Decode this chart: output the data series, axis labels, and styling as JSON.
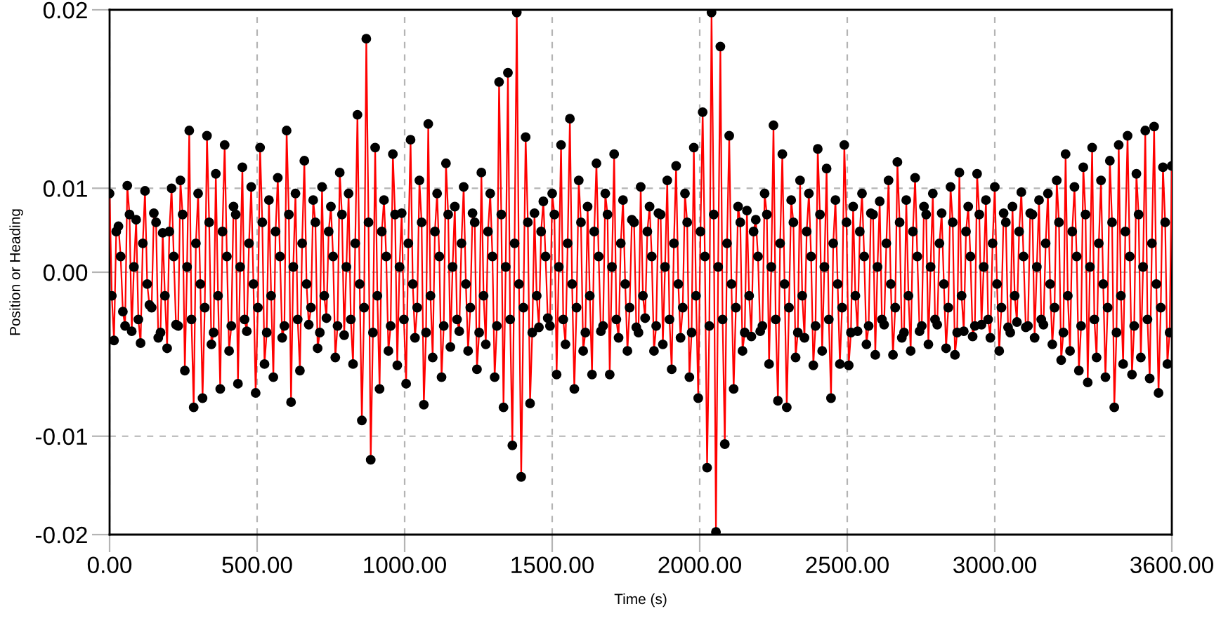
{
  "chart_data": {
    "type": "line",
    "xlabel": "Time (s)",
    "ylabel": "Position or Heading",
    "x": [
      0,
      7.5,
      15,
      22.5,
      30,
      37.5,
      45,
      52.5,
      60,
      67.5,
      75,
      82.5,
      90,
      97.5,
      105,
      112.5,
      120,
      127.5,
      135,
      142.5,
      150,
      157.5,
      165,
      172.5,
      180,
      187.5,
      195,
      202.5,
      210,
      217.5,
      225,
      232.5,
      240,
      247.5,
      255,
      262.5,
      270,
      277.5,
      285,
      292.5,
      300,
      307.5,
      315,
      322.5,
      330,
      337.5,
      345,
      352.5,
      360,
      367.5,
      375,
      382.5,
      390,
      397.5,
      405,
      412.5,
      420,
      427.5,
      435,
      442.5,
      450,
      457.5,
      465,
      472.5,
      480,
      487.5,
      495,
      502.5,
      510,
      517.5,
      525,
      532.5,
      540,
      547.5,
      555,
      562.5,
      570,
      577.5,
      585,
      592.5,
      600,
      607.5,
      615,
      622.5,
      630,
      637.5,
      645,
      652.5,
      660,
      667.5,
      675,
      682.5,
      690,
      697.5,
      705,
      712.5,
      720,
      727.5,
      735,
      742.5,
      750,
      757.5,
      765,
      772.5,
      780,
      787.5,
      795,
      802.5,
      810,
      817.5,
      825,
      832.5,
      840,
      847.5,
      855,
      862.5,
      870,
      877.5,
      885,
      892.5,
      900,
      907.5,
      915,
      922.5,
      930,
      937.5,
      945,
      952.5,
      960,
      967.5,
      975,
      982.5,
      990,
      997.5,
      1005,
      1012.5,
      1020,
      1027.5,
      1035,
      1042.5,
      1050,
      1057.5,
      1065,
      1072.5,
      1080,
      1087.5,
      1095,
      1102.5,
      1110,
      1117.5,
      1125,
      1132.5,
      1140,
      1147.5,
      1155,
      1162.5,
      1170,
      1177.5,
      1185,
      1192.5,
      1200,
      1207.5,
      1215,
      1222.5,
      1230,
      1237.5,
      1245,
      1252.5,
      1260,
      1267.5,
      1275,
      1282.5,
      1290,
      1297.5,
      1305,
      1312.5,
      1320,
      1327.5,
      1335,
      1342.5,
      1350,
      1357.5,
      1365,
      1372.5,
      1380,
      1387.5,
      1395,
      1402.5,
      1410,
      1417.5,
      1425,
      1432.5,
      1440,
      1447.5,
      1455,
      1462.5,
      1470,
      1477.5,
      1485,
      1492.5,
      1500,
      1507.5,
      1515,
      1522.5,
      1530,
      1537.5,
      1545,
      1552.5,
      1560,
      1567.5,
      1575,
      1582.5,
      1590,
      1597.5,
      1605,
      1612.5,
      1620,
      1627.5,
      1635,
      1642.5,
      1650,
      1657.5,
      1665,
      1672.5,
      1680,
      1687.5,
      1695,
      1702.5,
      1710,
      1717.5,
      1725,
      1732.5,
      1740,
      1747.5,
      1755,
      1762.5,
      1770,
      1777.5,
      1785,
      1792.5,
      1800,
      1807.5,
      1815,
      1822.5,
      1830,
      1837.5,
      1845,
      1852.5,
      1860,
      1867.5,
      1875,
      1882.5,
      1890,
      1897.5,
      1905,
      1912.5,
      1920,
      1927.5,
      1935,
      1942.5,
      1950,
      1957.5,
      1965,
      1972.5,
      1980,
      1987.5,
      1995,
      2002.5,
      2010,
      2017.5,
      2025,
      2032.5,
      2040,
      2047.5,
      2055,
      2062.5,
      2070,
      2077.5,
      2085,
      2092.5,
      2100,
      2107.5,
      2115,
      2122.5,
      2130,
      2137.5,
      2145,
      2152.5,
      2160,
      2167.5,
      2175,
      2182.5,
      2190,
      2197.5,
      2205,
      2212.5,
      2220,
      2227.5,
      2235,
      2242.5,
      2250,
      2257.5,
      2265,
      2272.5,
      2280,
      2287.5,
      2295,
      2302.5,
      2310,
      2317.5,
      2325,
      2332.5,
      2340,
      2347.5,
      2355,
      2362.5,
      2370,
      2377.5,
      2385,
      2392.5,
      2400,
      2407.5,
      2415,
      2422.5,
      2430,
      2437.5,
      2445,
      2452.5,
      2460,
      2467.5,
      2475,
      2482.5,
      2490,
      2497.5,
      2505,
      2512.5,
      2520,
      2527.5,
      2535,
      2542.5,
      2550,
      2557.5,
      2565,
      2572.5,
      2580,
      2587.5,
      2595,
      2602.5,
      2610,
      2617.5,
      2625,
      2632.5,
      2640,
      2647.5,
      2655,
      2662.5,
      2670,
      2677.5,
      2685,
      2692.5,
      2700,
      2707.5,
      2715,
      2722.5,
      2730,
      2737.5,
      2745,
      2752.5,
      2760,
      2767.5,
      2775,
      2782.5,
      2790,
      2797.5,
      2805,
      2812.5,
      2820,
      2827.5,
      2835,
      2842.5,
      2850,
      2857.5,
      2865,
      2872.5,
      2880,
      2887.5,
      2895,
      2902.5,
      2910,
      2917.5,
      2925,
      2932.5,
      2940,
      2947.5,
      2955,
      2962.5,
      2970,
      2977.5,
      2985,
      2992.5,
      3000,
      3007.5,
      3015,
      3022.5,
      3030,
      3037.5,
      3045,
      3052.5,
      3060,
      3067.5,
      3075,
      3082.5,
      3090,
      3097.5,
      3105,
      3112.5,
      3120,
      3127.5,
      3135,
      3142.5,
      3150,
      3157.5,
      3165,
      3172.5,
      3180,
      3187.5,
      3195,
      3202.5,
      3210,
      3217.5,
      3225,
      3232.5,
      3240,
      3247.5,
      3255,
      3262.5,
      3270,
      3277.5,
      3285,
      3292.5,
      3300,
      3307.5,
      3315,
      3322.5,
      3330,
      3337.5,
      3345,
      3352.5,
      3360,
      3367.5,
      3375,
      3382.5,
      3390,
      3397.5,
      3405,
      3412.5,
      3420,
      3427.5,
      3435,
      3442.5,
      3450,
      3457.5,
      3465,
      3472.5,
      3480,
      3487.5,
      3495,
      3502.5,
      3510,
      3517.5,
      3525,
      3532.5,
      3540,
      3547.5,
      3555,
      3562.5,
      3570,
      3577.5,
      3585,
      3592.5,
      3600
    ],
    "series": [
      {
        "color": "#ff0000",
        "values": [
          0.006,
          -0.0018,
          -0.0052,
          0.0031,
          0.0035,
          0.0012,
          -0.003,
          -0.0041,
          0.0066,
          0.0044,
          -0.0045,
          0.0004,
          0.004,
          -0.0036,
          -0.0054,
          0.0022,
          0.0062,
          -0.0009,
          -0.0025,
          -0.0027,
          0.0045,
          0.0038,
          -0.005,
          -0.0046,
          0.003,
          -0.0018,
          -0.0058,
          0.0031,
          0.0064,
          0.0012,
          -0.004,
          -0.0041,
          0.007,
          0.0044,
          -0.0075,
          0.0004,
          0.0108,
          -0.0036,
          -0.0103,
          0.0022,
          0.006,
          -0.0009,
          -0.0096,
          -0.0027,
          0.0104,
          0.0038,
          -0.0055,
          -0.0046,
          0.0075,
          -0.0018,
          -0.0089,
          0.0031,
          0.0097,
          0.0012,
          -0.006,
          -0.0041,
          0.005,
          0.0044,
          -0.0085,
          0.0004,
          0.008,
          -0.0036,
          -0.0045,
          0.0022,
          0.0065,
          -0.0009,
          -0.0092,
          -0.0027,
          0.0095,
          0.0038,
          -0.007,
          -0.0046,
          0.0055,
          -0.0018,
          -0.008,
          0.0031,
          0.0072,
          0.0012,
          -0.005,
          -0.0041,
          0.0108,
          0.0044,
          -0.0099,
          0.0004,
          0.006,
          -0.0036,
          -0.0075,
          0.0022,
          0.0085,
          -0.0009,
          -0.004,
          -0.0027,
          0.0055,
          0.0038,
          -0.0058,
          -0.0046,
          0.0065,
          -0.0018,
          -0.0035,
          0.0031,
          0.005,
          0.0012,
          -0.0065,
          -0.0041,
          0.0076,
          0.0044,
          -0.0048,
          0.0004,
          0.006,
          -0.0036,
          -0.007,
          0.0022,
          0.012,
          -0.0009,
          -0.0113,
          -0.0027,
          0.0178,
          0.0038,
          -0.0143,
          -0.0046,
          0.0095,
          -0.0018,
          -0.0089,
          0.0031,
          0.0055,
          0.0012,
          -0.006,
          -0.0041,
          0.009,
          0.0044,
          -0.0071,
          0.0004,
          0.0045,
          -0.0036,
          -0.0085,
          0.0022,
          0.0101,
          -0.0009,
          -0.005,
          -0.0027,
          0.007,
          0.0038,
          -0.0101,
          -0.0046,
          0.0113,
          -0.0018,
          -0.0065,
          0.0031,
          0.006,
          0.0012,
          -0.008,
          -0.0041,
          0.0083,
          0.0044,
          -0.0057,
          0.0004,
          0.005,
          -0.0036,
          -0.0045,
          0.0022,
          0.0065,
          -0.0009,
          -0.006,
          -0.0027,
          0.0045,
          0.0038,
          -0.0074,
          -0.0046,
          0.0076,
          -0.0018,
          -0.0055,
          0.0031,
          0.006,
          0.0012,
          -0.008,
          -0.0041,
          0.0145,
          0.0044,
          -0.0103,
          0.0004,
          0.0152,
          -0.0036,
          -0.0132,
          0.0022,
          0.0198,
          -0.0009,
          -0.0156,
          -0.0027,
          0.0103,
          0.0038,
          -0.01,
          -0.0046,
          0.0045,
          -0.0018,
          -0.0042,
          0.0031,
          0.0054,
          0.0012,
          -0.0035,
          -0.0041,
          0.006,
          0.0044,
          -0.0078,
          0.0004,
          0.0097,
          -0.0036,
          -0.0055,
          0.0022,
          0.0117,
          -0.0009,
          -0.0089,
          -0.0027,
          0.007,
          0.0038,
          -0.006,
          -0.0046,
          0.005,
          -0.0018,
          -0.0078,
          0.0031,
          0.0083,
          0.0012,
          -0.0045,
          -0.0041,
          0.006,
          0.0044,
          -0.0078,
          0.0004,
          0.009,
          -0.0036,
          -0.005,
          0.0022,
          0.0055,
          -0.0009,
          -0.006,
          -0.0027,
          0.004,
          0.0038,
          -0.0042,
          -0.0046,
          0.0065,
          -0.0018,
          -0.0035,
          0.0031,
          0.005,
          0.0012,
          -0.006,
          -0.0041,
          0.0045,
          0.0044,
          -0.0055,
          0.0004,
          0.007,
          -0.0036,
          -0.0074,
          0.0022,
          0.0081,
          -0.0009,
          -0.005,
          -0.0027,
          0.006,
          0.0038,
          -0.008,
          -0.0046,
          0.0095,
          -0.0018,
          -0.0096,
          0.0031,
          0.0122,
          0.0012,
          -0.0149,
          -0.0041,
          0.0198,
          0.0044,
          -0.0198,
          0.0004,
          0.0172,
          -0.0036,
          -0.0131,
          0.0022,
          0.0104,
          -0.0009,
          -0.0089,
          -0.0027,
          0.005,
          0.0038,
          -0.006,
          -0.0046,
          0.0047,
          -0.0018,
          -0.0049,
          0.0031,
          0.004,
          0.0012,
          -0.0045,
          -0.0041,
          0.006,
          0.0044,
          -0.007,
          0.0004,
          0.0112,
          -0.0036,
          -0.0098,
          0.0022,
          0.009,
          -0.0009,
          -0.0103,
          -0.0027,
          0.0055,
          0.0038,
          -0.0065,
          -0.0046,
          0.007,
          -0.0018,
          -0.005,
          0.0031,
          0.006,
          0.0012,
          -0.0071,
          -0.0041,
          0.0094,
          0.0044,
          -0.006,
          0.0004,
          0.0079,
          -0.0036,
          -0.0096,
          0.0022,
          0.0055,
          -0.0009,
          -0.007,
          -0.0027,
          0.0097,
          0.0038,
          -0.0071,
          -0.0046,
          0.005,
          -0.0018,
          -0.0045,
          0.0031,
          0.006,
          0.0012,
          -0.0055,
          -0.0041,
          0.0045,
          0.0044,
          -0.0063,
          0.0004,
          0.0054,
          -0.0036,
          -0.004,
          0.0022,
          0.007,
          -0.0009,
          -0.0063,
          -0.0027,
          0.0084,
          0.0038,
          -0.005,
          -0.0046,
          0.0055,
          -0.0018,
          -0.006,
          0.0031,
          0.0072,
          0.0012,
          -0.0045,
          -0.0041,
          0.005,
          0.0044,
          -0.0055,
          0.0004,
          0.006,
          -0.0036,
          -0.004,
          0.0022,
          0.0045,
          -0.0009,
          -0.0058,
          -0.0027,
          0.0065,
          0.0038,
          -0.0063,
          -0.0046,
          0.0076,
          -0.0018,
          -0.0045,
          0.0031,
          0.005,
          0.0012,
          -0.0049,
          -0.0041,
          0.0075,
          0.0044,
          -0.004,
          0.0004,
          0.0055,
          -0.0036,
          -0.005,
          0.0022,
          0.0065,
          -0.0009,
          -0.006,
          -0.0027,
          0.0045,
          0.0038,
          -0.0042,
          -0.0046,
          0.005,
          -0.0018,
          -0.0038,
          0.0031,
          0.0061,
          0.0012,
          -0.0042,
          -0.0041,
          0.0045,
          0.0044,
          -0.005,
          0.0004,
          0.0055,
          -0.0036,
          -0.004,
          0.0022,
          0.006,
          -0.0009,
          -0.0055,
          -0.0027,
          0.007,
          0.0038,
          -0.0067,
          -0.0046,
          0.009,
          -0.0018,
          -0.006,
          0.0031,
          0.0065,
          0.0012,
          -0.0075,
          -0.0041,
          0.008,
          0.0044,
          -0.0084,
          0.0004,
          0.0095,
          -0.0036,
          -0.0065,
          0.0022,
          0.007,
          -0.0009,
          -0.008,
          -0.0027,
          0.0085,
          0.0038,
          -0.0103,
          -0.0046,
          0.0097,
          -0.0018,
          -0.007,
          0.0031,
          0.0104,
          0.0012,
          -0.0078,
          -0.0041,
          0.0075,
          0.0044,
          -0.0065,
          0.0004,
          0.0108,
          -0.0036,
          -0.0081,
          0.0022,
          0.0111,
          -0.0009,
          -0.0092,
          -0.0027,
          0.008,
          0.0038,
          -0.007,
          -0.0046,
          0.0081
        ]
      }
    ],
    "xlim": [
      0,
      3600
    ],
    "ylim": [
      -0.02,
      0.02
    ],
    "xticks": [
      {
        "value": 0,
        "label": "0.00"
      },
      {
        "value": 500,
        "label": "500.00"
      },
      {
        "value": 1000,
        "label": "1000.00"
      },
      {
        "value": 1500,
        "label": "1500.00"
      },
      {
        "value": 2000,
        "label": "2000.00"
      },
      {
        "value": 2500,
        "label": "2500.00"
      },
      {
        "value": 3000,
        "label": "3000.00"
      },
      {
        "value": 3600,
        "label": "3600.00"
      }
    ],
    "yticks": [
      {
        "value": 0.02,
        "label": "0.02"
      },
      {
        "value": 0.0064,
        "label": "0.01"
      },
      {
        "value": 0,
        "label": "0.00"
      },
      {
        "value": -0.0125,
        "label": "-0.01"
      },
      {
        "value": -0.02,
        "label": "-0.02"
      }
    ],
    "grid": true,
    "marker": "circle",
    "line_style": "solid"
  }
}
